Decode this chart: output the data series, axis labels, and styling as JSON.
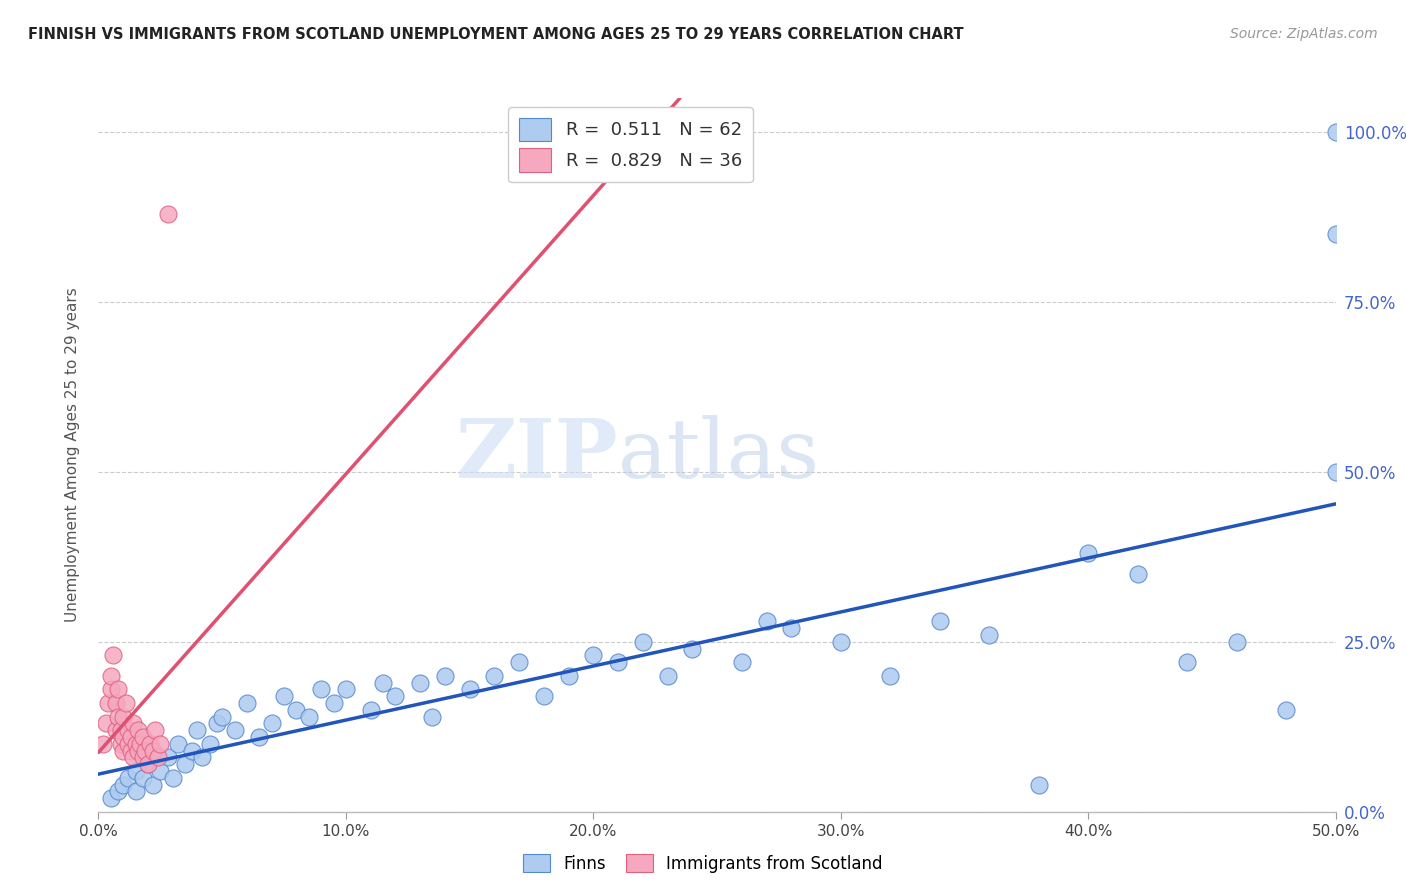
{
  "title": "FINNISH VS IMMIGRANTS FROM SCOTLAND UNEMPLOYMENT AMONG AGES 25 TO 29 YEARS CORRELATION CHART",
  "source": "Source: ZipAtlas.com",
  "ylabel": "Unemployment Among Ages 25 to 29 years",
  "xlim": [
    0.0,
    0.5
  ],
  "ylim": [
    0.0,
    1.05
  ],
  "xtick_values": [
    0.0,
    0.1,
    0.2,
    0.3,
    0.4,
    0.5
  ],
  "xtick_labels": [
    "0.0%",
    "10.0%",
    "20.0%",
    "30.0%",
    "40.0%",
    "50.0%"
  ],
  "ytick_values": [
    0.0,
    0.25,
    0.5,
    0.75,
    1.0
  ],
  "ytick_labels": [
    "0.0%",
    "25.0%",
    "50.0%",
    "75.0%",
    "100.0%"
  ],
  "finns_R": "0.511",
  "finns_N": "62",
  "scots_R": "0.829",
  "scots_N": "36",
  "finns_color": "#aecbf0",
  "scots_color": "#f5a8c0",
  "finns_edge_color": "#5588cc",
  "scots_edge_color": "#e06080",
  "trendline_finns_color": "#2255bb",
  "trendline_scots_color": "#e05070",
  "watermark_zip": "ZIP",
  "watermark_atlas": "atlas",
  "legend_box_color": "#dddddd",
  "right_axis_color": "#4466cc",
  "title_color": "#222222",
  "source_color": "#999999",
  "grid_color": "#cccccc",
  "finns_x": [
    0.005,
    0.008,
    0.01,
    0.012,
    0.015,
    0.015,
    0.018,
    0.02,
    0.022,
    0.025,
    0.028,
    0.03,
    0.032,
    0.035,
    0.038,
    0.04,
    0.042,
    0.045,
    0.048,
    0.05,
    0.055,
    0.06,
    0.065,
    0.07,
    0.075,
    0.08,
    0.085,
    0.09,
    0.095,
    0.1,
    0.11,
    0.115,
    0.12,
    0.13,
    0.135,
    0.14,
    0.15,
    0.16,
    0.17,
    0.18,
    0.19,
    0.2,
    0.21,
    0.22,
    0.23,
    0.24,
    0.26,
    0.27,
    0.28,
    0.3,
    0.32,
    0.34,
    0.36,
    0.38,
    0.4,
    0.42,
    0.44,
    0.46,
    0.48,
    0.5,
    0.5,
    0.5
  ],
  "finns_y": [
    0.02,
    0.03,
    0.04,
    0.05,
    0.06,
    0.03,
    0.05,
    0.07,
    0.04,
    0.06,
    0.08,
    0.05,
    0.1,
    0.07,
    0.09,
    0.12,
    0.08,
    0.1,
    0.13,
    0.14,
    0.12,
    0.16,
    0.11,
    0.13,
    0.17,
    0.15,
    0.14,
    0.18,
    0.16,
    0.18,
    0.15,
    0.19,
    0.17,
    0.19,
    0.14,
    0.2,
    0.18,
    0.2,
    0.22,
    0.17,
    0.2,
    0.23,
    0.22,
    0.25,
    0.2,
    0.24,
    0.22,
    0.28,
    0.27,
    0.25,
    0.2,
    0.28,
    0.26,
    0.04,
    0.38,
    0.35,
    0.22,
    0.25,
    0.15,
    0.5,
    1.0,
    0.85
  ],
  "scots_x": [
    0.002,
    0.003,
    0.004,
    0.005,
    0.005,
    0.006,
    0.007,
    0.007,
    0.008,
    0.008,
    0.009,
    0.009,
    0.01,
    0.01,
    0.01,
    0.011,
    0.012,
    0.012,
    0.013,
    0.013,
    0.014,
    0.014,
    0.015,
    0.016,
    0.016,
    0.017,
    0.018,
    0.018,
    0.019,
    0.02,
    0.021,
    0.022,
    0.023,
    0.024,
    0.025,
    0.028
  ],
  "scots_y": [
    0.1,
    0.13,
    0.16,
    0.18,
    0.2,
    0.23,
    0.16,
    0.12,
    0.18,
    0.14,
    0.1,
    0.12,
    0.09,
    0.11,
    0.14,
    0.16,
    0.1,
    0.12,
    0.09,
    0.11,
    0.08,
    0.13,
    0.1,
    0.09,
    0.12,
    0.1,
    0.08,
    0.11,
    0.09,
    0.07,
    0.1,
    0.09,
    0.12,
    0.08,
    0.1,
    0.88
  ],
  "scots_trendline_x0": 0.0,
  "scots_trendline_y0": 0.04,
  "scots_trendline_x1": 0.027,
  "scots_trendline_y1": 1.05
}
